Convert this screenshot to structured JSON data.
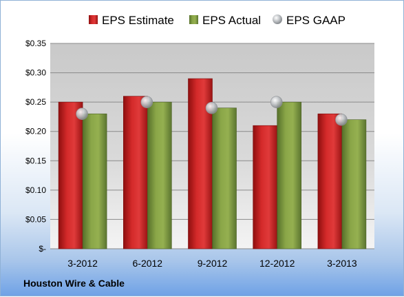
{
  "company_label": "Houston Wire & Cable",
  "colors": {
    "estimate": "#c41d1d",
    "actual": "#7f9a3a",
    "gaap": "#b5b9be"
  },
  "chart_data": {
    "type": "bar",
    "categories": [
      "3-2012",
      "6-2012",
      "9-2012",
      "12-2012",
      "3-2013"
    ],
    "series": [
      {
        "name": "EPS Estimate",
        "type": "bar",
        "values": [
          0.25,
          0.26,
          0.29,
          0.21,
          0.23
        ]
      },
      {
        "name": "EPS Actual",
        "type": "bar",
        "values": [
          0.23,
          0.25,
          0.24,
          0.25,
          0.22
        ]
      },
      {
        "name": "EPS GAAP",
        "type": "marker",
        "values": [
          0.23,
          0.25,
          0.24,
          0.25,
          0.22
        ]
      }
    ],
    "ylim": [
      0,
      0.35
    ],
    "yticks": [
      0,
      0.05,
      0.1,
      0.15,
      0.2,
      0.25,
      0.3,
      0.35
    ],
    "ytick_labels": [
      "$-",
      "$0.05",
      "$0.10",
      "$0.15",
      "$0.20",
      "$0.25",
      "$0.30",
      "$0.35"
    ],
    "grid": true,
    "legend_position": "top"
  }
}
